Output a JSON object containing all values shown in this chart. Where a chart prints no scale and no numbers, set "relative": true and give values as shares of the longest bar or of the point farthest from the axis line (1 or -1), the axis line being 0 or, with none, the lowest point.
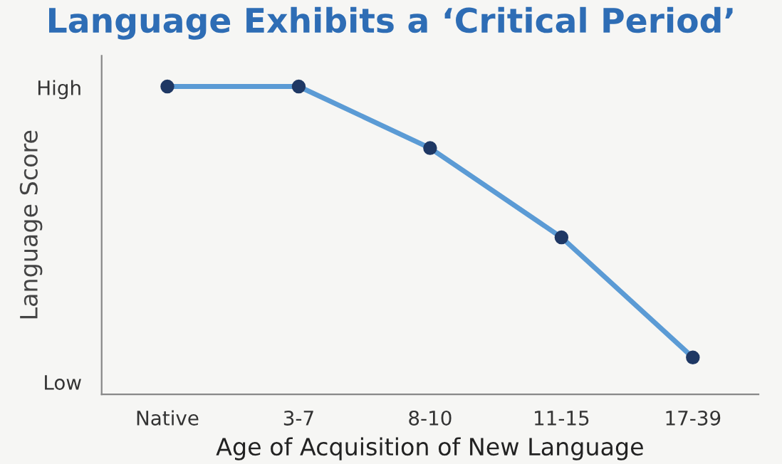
{
  "chart_data": {
    "type": "line",
    "title": "Language Exhibits a ‘Critical Period’",
    "xlabel": "Age of Acquisition of New Language",
    "ylabel": "Language Score",
    "categories": [
      "Native",
      "3-7",
      "8-10",
      "11-15",
      "17-39"
    ],
    "series": [
      {
        "color": "#5b9bd5",
        "values": [
          1,
          1,
          0.8,
          0.51,
          0.12
        ]
      }
    ],
    "relative": true,
    "annotations": [
      "High",
      "Low"
    ],
    "grid": false,
    "legend": false,
    "marker": "circle",
    "line_style": "solid"
  }
}
